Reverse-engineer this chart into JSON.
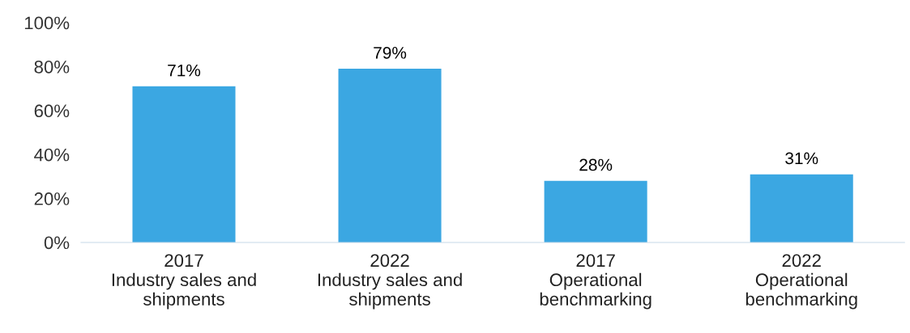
{
  "chart_data": {
    "type": "bar",
    "categories": [
      "2017\nIndustry sales and\nshipments",
      "2022\nIndustry sales and\nshipments",
      "2017\nOperational\nbenchmarking",
      "2022\nOperational\nbenchmarking"
    ],
    "values": [
      71,
      79,
      28,
      31
    ],
    "value_labels": [
      "71%",
      "79%",
      "28%",
      "31%"
    ],
    "color": "#3ba7e2",
    "ylim": [
      0,
      100
    ],
    "yticks": [
      {
        "value": 0,
        "label": "0%"
      },
      {
        "value": 20,
        "label": "20%"
      },
      {
        "value": 40,
        "label": "40%"
      },
      {
        "value": 60,
        "label": "60%"
      },
      {
        "value": 80,
        "label": "80%"
      },
      {
        "value": 100,
        "label": "100%"
      }
    ],
    "grid": false,
    "legend": false
  }
}
